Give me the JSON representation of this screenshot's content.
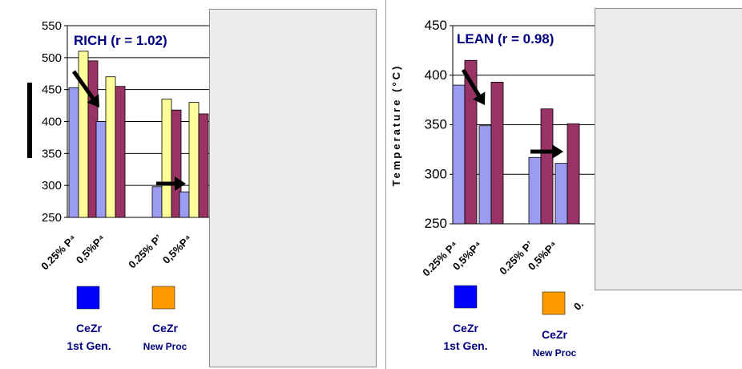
{
  "chart_data": [
    {
      "type": "bar",
      "title": "RICH (r = 1.02)",
      "ylim": [
        250,
        550
      ],
      "yticks": [
        250,
        300,
        350,
        400,
        450,
        500,
        550
      ],
      "categories": [
        "0.25% Pt",
        "0.5% Pt",
        "0.25% Pt",
        "0.5% Pt"
      ],
      "tick_labels": [
        "0.25% P⁴",
        "0,5%P⁴",
        "0.25% P’",
        "0,5%P⁴"
      ],
      "grid": true,
      "series": [
        {
          "color": "#9b9bf2",
          "values": [
            453,
            400,
            298,
            290
          ]
        },
        {
          "color": "#ffff99",
          "values": [
            510,
            470,
            435,
            430
          ]
        },
        {
          "color": "#993366",
          "values": [
            495,
            455,
            418,
            412
          ]
        }
      ],
      "legend": [
        {
          "label_top": "CeZr",
          "label_bottom": "1st Gen.",
          "color": "#0000ff"
        },
        {
          "label_top": "CeZr",
          "label_bottom": "New Proc",
          "color": "#ff9900"
        }
      ]
    },
    {
      "type": "bar",
      "title": "LEAN (r = 0.98)",
      "ylabel": "Temperature (°C)",
      "ylim": [
        250,
        450
      ],
      "yticks": [
        250,
        300,
        350,
        400,
        450
      ],
      "categories": [
        "0.25% Pt",
        "0.5% Pt",
        "0.25% Pt",
        "0.5% Pt"
      ],
      "tick_labels": [
        "0.25% P⁴",
        "0,5%P⁴",
        "0.25% P’",
        "0,5%P⁴"
      ],
      "grid": true,
      "series": [
        {
          "color": "#9b9bf2",
          "values": [
            390,
            349,
            317,
            311
          ]
        },
        {
          "color": "#993366",
          "values": [
            415,
            393,
            366,
            351
          ]
        }
      ],
      "legend": [
        {
          "label_top": "CeZr",
          "label_bottom": "1st Gen.",
          "color": "#0000ff"
        },
        {
          "label_top": "CeZr",
          "label_bottom": "New Proc",
          "color": "#ff9900"
        }
      ]
    }
  ]
}
